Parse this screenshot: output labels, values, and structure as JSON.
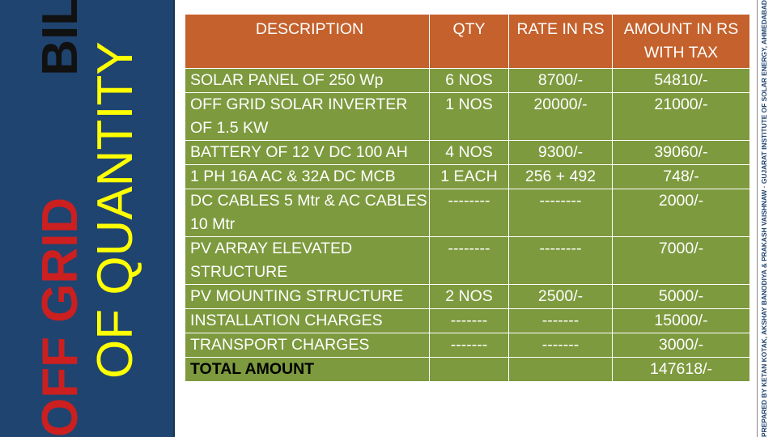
{
  "title": {
    "line1_part1": "OFF GRID",
    "line1_part2": "BILL",
    "line2": "OF QUANTITY"
  },
  "credit": "PREPARED BY KETAN KOTAK, AKSHAY BANODIYA & PRAKASH VAISHNAW · GUJARAT INSTITUTE OF SOLAR ENERGY, AHMEDABAD",
  "colors": {
    "header_bg": "#c5612c",
    "row_bg": "#7d9a3e",
    "side_panel": "#1f4470",
    "title_red": "#cc1f1f",
    "title_yellow": "#ffff00"
  },
  "table": {
    "headers": {
      "description": "DESCRIPTION",
      "qty": "QTY",
      "rate": "RATE IN RS",
      "amount": "AMOUNT IN RS  WITH TAX"
    },
    "rows": [
      {
        "description": "SOLAR PANEL OF 250 Wp",
        "qty": "6 NOS",
        "rate": "8700/-",
        "amount": "54810/-"
      },
      {
        "description": "OFF GRID SOLAR INVERTER OF 1.5 KW",
        "qty": "1 NOS",
        "rate": "20000/-",
        "amount": "21000/-"
      },
      {
        "description": "BATTERY OF 12 V DC 100 AH",
        "qty": "4 NOS",
        "rate": "9300/-",
        "amount": "39060/-"
      },
      {
        "description": "1 PH 16A AC & 32A DC MCB",
        "qty": "1 EACH",
        "rate": "256 + 492",
        "amount": "748/-"
      },
      {
        "description": "DC CABLES 5 Mtr & AC CABLES 10 Mtr",
        "qty": "--------",
        "rate": "--------",
        "amount": "2000/-"
      },
      {
        "description": "PV ARRAY ELEVATED STRUCTURE",
        "qty": "--------",
        "rate": "--------",
        "amount": "7000/-"
      },
      {
        "description": "PV MOUNTING STRUCTURE",
        "qty": "2 NOS",
        "rate": "2500/-",
        "amount": "5000/-"
      },
      {
        "description": "INSTALLATION CHARGES",
        "qty": "-------",
        "rate": "-------",
        "amount": "15000/-"
      },
      {
        "description": "TRANSPORT  CHARGES",
        "qty": "-------",
        "rate": "-------",
        "amount": "3000/-"
      }
    ],
    "total": {
      "label": "TOTAL AMOUNT",
      "amount": "147618/-"
    }
  }
}
